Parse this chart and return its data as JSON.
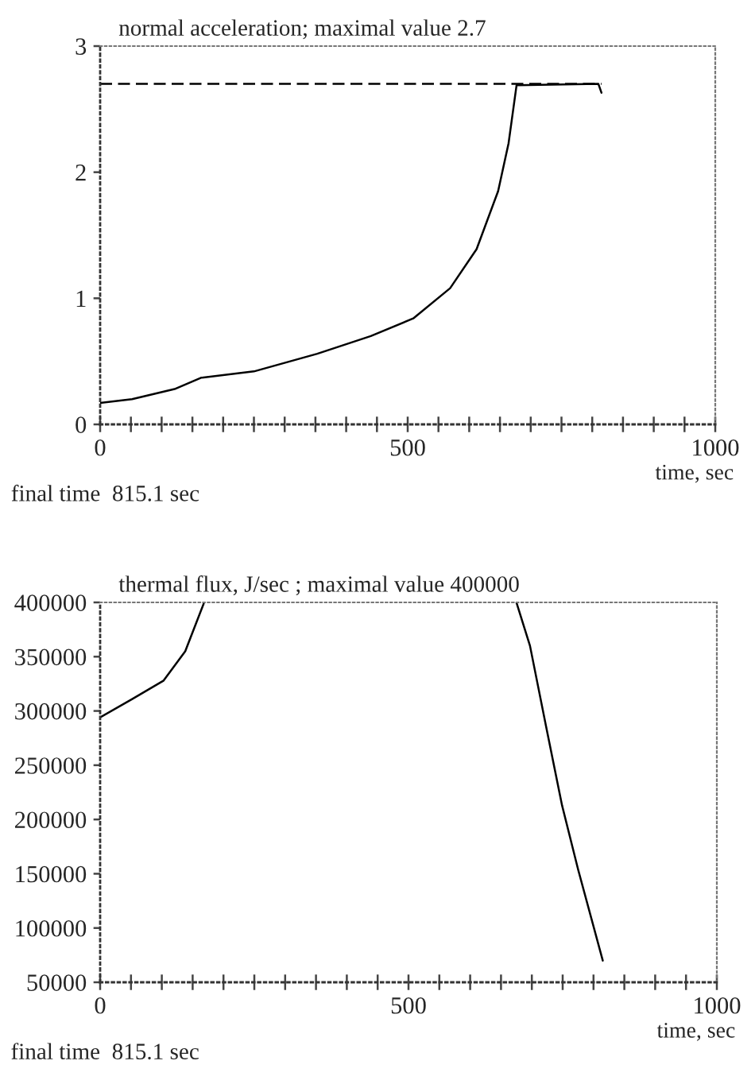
{
  "chart_data": [
    {
      "type": "line",
      "title": "normal acceleration; maximal value 2.7",
      "xlabel": "time, sec",
      "annotations": [
        "final time  815.1 sec"
      ],
      "series": [
        {
          "color": "#000000",
          "line_style": "solid",
          "x": [
            0,
            52,
            121,
            164,
            250,
            353,
            440,
            509,
            569,
            612,
            647,
            664,
            677,
            810,
            815
          ],
          "values": [
            0.17,
            0.2,
            0.28,
            0.37,
            0.42,
            0.56,
            0.7,
            0.84,
            1.08,
            1.39,
            1.85,
            2.23,
            2.69,
            2.7,
            2.63
          ]
        },
        {
          "color": "#000000",
          "line_style": "dashed",
          "x": [
            0,
            815
          ],
          "values": [
            2.7,
            2.7
          ]
        }
      ],
      "xlim": [
        0,
        1000
      ],
      "xticks": [
        0,
        {
          "value": 50,
          "label": null
        },
        {
          "value": 100,
          "label": null
        },
        {
          "value": 150,
          "label": null
        },
        {
          "value": 200,
          "label": null
        },
        {
          "value": 250,
          "label": null
        },
        {
          "value": 300,
          "label": null
        },
        {
          "value": 350,
          "label": null
        },
        {
          "value": 400,
          "label": null
        },
        {
          "value": 450,
          "label": null
        },
        500,
        {
          "value": 550,
          "label": null
        },
        {
          "value": 600,
          "label": null
        },
        {
          "value": 650,
          "label": null
        },
        {
          "value": 700,
          "label": null
        },
        {
          "value": 750,
          "label": null
        },
        {
          "value": 800,
          "label": null
        },
        {
          "value": 850,
          "label": null
        },
        {
          "value": 900,
          "label": null
        },
        {
          "value": 950,
          "label": null
        },
        1000
      ],
      "ylim": [
        0,
        3
      ],
      "yticks": [
        0,
        1,
        2,
        3
      ],
      "grid": false
    },
    {
      "type": "line",
      "title": "thermal flux, J/sec ; maximal value 400000",
      "xlabel": "time, sec",
      "annotations": [
        "final time  815.1 sec"
      ],
      "series": [
        {
          "color": "#000000",
          "line_style": "solid",
          "x": [
            0,
            52,
            103,
            138,
            168,
            400,
            675,
            697,
            723,
            749,
            775,
            815
          ],
          "values": [
            294000,
            311000,
            328000,
            355000,
            399000,
            null,
            400000,
            360000,
            286000,
            213000,
            154000,
            70000
          ]
        }
      ],
      "xlim": [
        0,
        1000
      ],
      "xticks": [
        0,
        {
          "value": 50,
          "label": null
        },
        {
          "value": 100,
          "label": null
        },
        {
          "value": 150,
          "label": null
        },
        {
          "value": 200,
          "label": null
        },
        {
          "value": 250,
          "label": null
        },
        {
          "value": 300,
          "label": null
        },
        {
          "value": 350,
          "label": null
        },
        {
          "value": 400,
          "label": null
        },
        {
          "value": 450,
          "label": null
        },
        500,
        {
          "value": 550,
          "label": null
        },
        {
          "value": 600,
          "label": null
        },
        {
          "value": 650,
          "label": null
        },
        {
          "value": 700,
          "label": null
        },
        {
          "value": 750,
          "label": null
        },
        {
          "value": 800,
          "label": null
        },
        {
          "value": 850,
          "label": null
        },
        {
          "value": 900,
          "label": null
        },
        {
          "value": 950,
          "label": null
        },
        1000
      ],
      "ylim": [
        50000,
        400000
      ],
      "yticks": [
        50000,
        100000,
        150000,
        200000,
        250000,
        300000,
        350000,
        400000
      ],
      "grid": false
    }
  ]
}
